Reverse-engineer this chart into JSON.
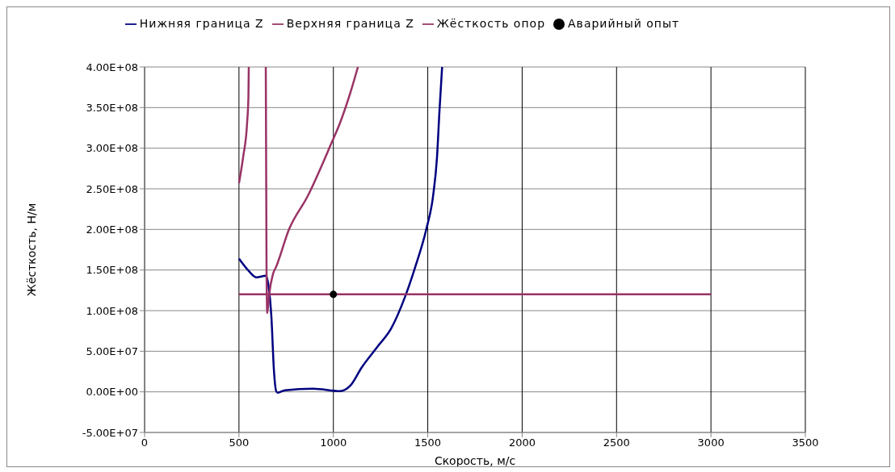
{
  "chart_data": {
    "type": "line",
    "xlabel": "Скорость, м/с",
    "ylabel": "Жёсткость, Н/м",
    "xlim": [
      0,
      3500
    ],
    "xticks": [
      0,
      500,
      1000,
      1500,
      2000,
      2500,
      3000,
      3500
    ],
    "ylim": [
      -50000000,
      400000000
    ],
    "yticks": [
      {
        "value": -50000000,
        "label": "-5.00E+07"
      },
      {
        "value": 0,
        "label": "0.00E+00"
      },
      {
        "value": 50000000,
        "label": "5.00E+07"
      },
      {
        "value": 100000000,
        "label": "1.00E+08"
      },
      {
        "value": 150000000,
        "label": "1.50E+08"
      },
      {
        "value": 200000000,
        "label": "2.00E+08"
      },
      {
        "value": 250000000,
        "label": "2.50E+08"
      },
      {
        "value": 300000000,
        "label": "3.00E+08"
      },
      {
        "value": 350000000,
        "label": "3.50E+08"
      },
      {
        "value": 400000000,
        "label": "4.00E+08"
      }
    ],
    "grid": true,
    "legend": "top",
    "marker": "none",
    "line_style": "solid",
    "series": [
      {
        "name": "Нижняя граница Z",
        "color": "#000080",
        "x": [
          500,
          551,
          593,
          642,
          657,
          672,
          685,
          697,
          705,
          743,
          893,
          1035,
          1091,
          1150,
          1235,
          1306,
          1378,
          1434,
          1492,
          1528,
          1549,
          1562,
          1576
        ],
        "values": [
          164000000,
          149000000,
          141000000,
          143000000,
          130000000,
          91000000,
          27000000,
          1000000,
          -1000000,
          2000000,
          4000000,
          1000000,
          8000000,
          30000000,
          56000000,
          78000000,
          116000000,
          154000000,
          200000000,
          241000000,
          289000000,
          346000000,
          400000000
        ]
      },
      {
        "name": "Верхняя граница Z",
        "color": "#993366",
        "x": [
          500,
          522,
          543,
          550,
          552,
          600,
          642,
          646,
          650,
          660,
          680,
          697,
          765,
          864,
          993,
          1035,
          1091,
          1130
        ],
        "values": [
          257000000,
          289000000,
          331000000,
          363000000,
          400000000,
          null,
          400000000,
          150000000,
          97000000,
          120000000,
          145000000,
          154000000,
          200000000,
          241000000,
          308000000,
          331000000,
          369000000,
          400000000
        ]
      },
      {
        "name": "Жёсткость опор",
        "color": "#993366",
        "x": [
          500,
          3000
        ],
        "values": [
          120000000,
          120000000
        ]
      },
      {
        "name": "Аварийный опыт",
        "type": "scatter",
        "color": "#000000",
        "marker": "circle",
        "x": [
          1000
        ],
        "values": [
          120000000
        ]
      }
    ]
  }
}
